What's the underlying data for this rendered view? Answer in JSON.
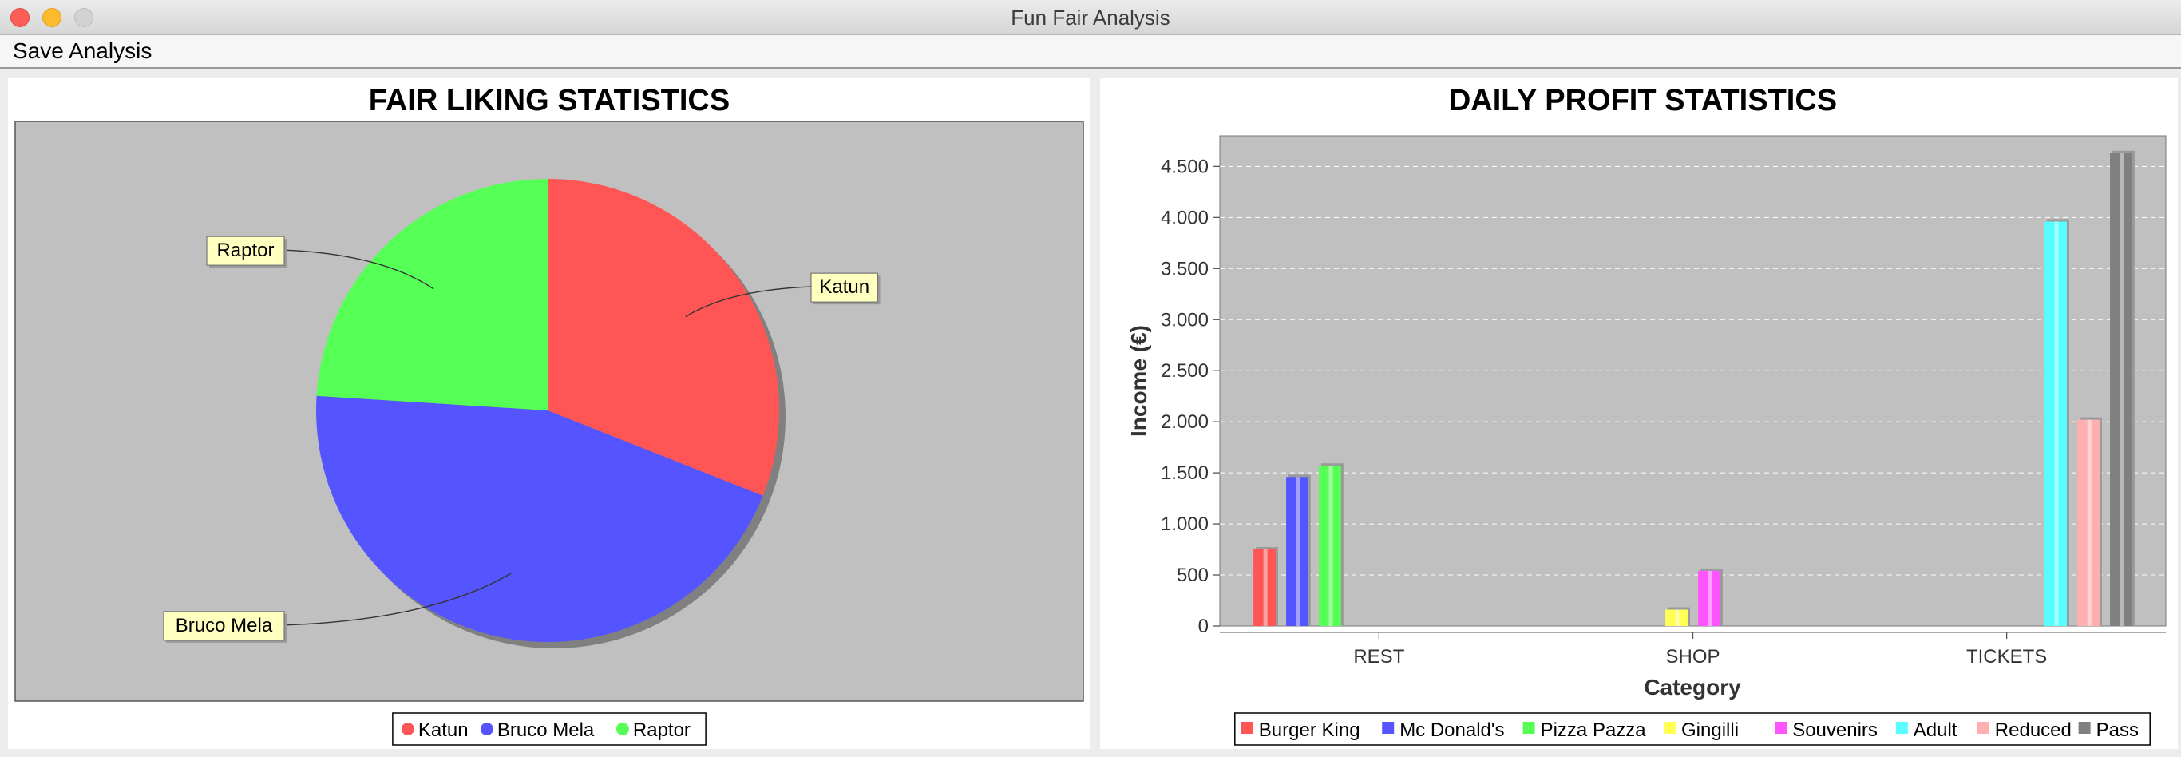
{
  "window": {
    "title": "Fun Fair Analysis"
  },
  "menubar": {
    "items": [
      {
        "label": "Save Analysis"
      }
    ]
  },
  "colors": {
    "plot_bg": "#c0c0c0",
    "label_bg": "#ffffc0"
  },
  "chart_data": [
    {
      "type": "pie",
      "title": "FAIR LIKING STATISTICS",
      "slices": [
        {
          "label": "Katun",
          "value": 31,
          "color": "#ff5555"
        },
        {
          "label": "Bruco Mela",
          "value": 45,
          "color": "#5555ff"
        },
        {
          "label": "Raptor",
          "value": 24,
          "color": "#55ff55"
        }
      ],
      "legend": "bottom"
    },
    {
      "type": "bar",
      "title": "DAILY PROFIT STATISTICS",
      "xlabel": "Category",
      "ylabel": "Income (€)",
      "categories": [
        "REST",
        "SHOP",
        "TICKETS"
      ],
      "ylim": [
        0,
        4800
      ],
      "yticks": [
        {
          "value": 0,
          "label": "0"
        },
        {
          "value": 500,
          "label": "500"
        },
        {
          "value": 1000,
          "label": "1.000"
        },
        {
          "value": 1500,
          "label": "1.500"
        },
        {
          "value": 2000,
          "label": "2.000"
        },
        {
          "value": 2500,
          "label": "2.500"
        },
        {
          "value": 3000,
          "label": "3.000"
        },
        {
          "value": 3500,
          "label": "3.500"
        },
        {
          "value": 4000,
          "label": "4.000"
        },
        {
          "value": 4500,
          "label": "4.500"
        }
      ],
      "grid": true,
      "legend": "bottom",
      "series": [
        {
          "name": "Burger King",
          "color": "#ff5555",
          "values": [
            750,
            null,
            null
          ]
        },
        {
          "name": "Mc Donald's",
          "color": "#5555ff",
          "values": [
            1460,
            null,
            null
          ]
        },
        {
          "name": "Pizza Pazza",
          "color": "#55ff55",
          "values": [
            1570,
            null,
            null
          ]
        },
        {
          "name": "Gingilli",
          "color": "#ffff55",
          "values": [
            null,
            160,
            null
          ]
        },
        {
          "name": "Souvenirs",
          "color": "#ff55ff",
          "values": [
            null,
            540,
            null
          ]
        },
        {
          "name": "Adult",
          "color": "#55ffff",
          "values": [
            null,
            null,
            3960
          ]
        },
        {
          "name": "Reduced",
          "color": "#ffafaf",
          "values": [
            null,
            null,
            2020
          ]
        },
        {
          "name": "Pass",
          "color": "#808080",
          "values": [
            null,
            null,
            4630
          ]
        }
      ]
    }
  ]
}
